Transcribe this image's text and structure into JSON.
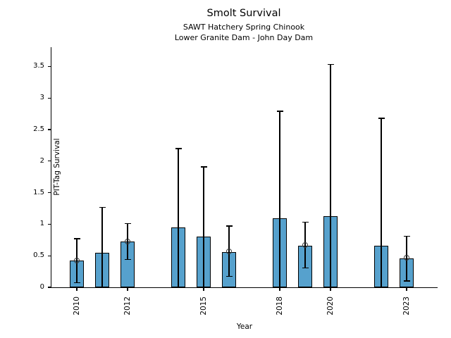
{
  "header": {
    "title": "Smolt Survival",
    "subtitle1": "SAWT Hatchery Spring Chinook",
    "subtitle2": "Lower Granite Dam - John Day Dam"
  },
  "chart_data": {
    "type": "bar",
    "title": "Smolt Survival",
    "subtitle": [
      "SAWT Hatchery Spring Chinook",
      "Lower Granite Dam - John Day Dam"
    ],
    "xlabel": "Year",
    "ylabel": "PIT-Tag Survival",
    "ylim": [
      0,
      3.8
    ],
    "xlim": [
      2009,
      2024.2
    ],
    "grid": false,
    "legend": "none",
    "bar_color": "#56a1cd",
    "bar_edge_color": "#000000",
    "error_bar_color": "#000000",
    "marker_color": "#3a3a3a",
    "yticks": [
      0,
      0.5,
      1,
      1.5,
      2,
      2.5,
      3,
      3.5
    ],
    "ytick_labels": [
      "0",
      "0.5",
      "1",
      "1.5",
      "2",
      "2.5",
      "3",
      "3.5"
    ],
    "xtick_years": [
      2010,
      2012,
      2015,
      2018,
      2020,
      2023
    ],
    "xtick_labels": [
      "2010",
      "2012",
      "2015",
      "2018",
      "2020",
      "2023"
    ],
    "categories": [
      2010,
      2011,
      2012,
      2014,
      2015,
      2016,
      2018,
      2019,
      2020,
      2022,
      2023
    ],
    "values": [
      0.42,
      0.55,
      0.72,
      0.95,
      0.8,
      0.56,
      1.09,
      0.66,
      1.13,
      0.66,
      0.46
    ],
    "ci_lower": [
      0.07,
      0,
      0.44,
      0,
      0,
      0.17,
      0,
      0.31,
      0,
      0,
      0.1
    ],
    "ci_upper": [
      0.77,
      1.27,
      1.01,
      2.2,
      1.91,
      0.97,
      2.79,
      1.03,
      3.53,
      2.68,
      0.81
    ],
    "point_marker": [
      true,
      false,
      true,
      false,
      false,
      true,
      false,
      true,
      false,
      false,
      true
    ]
  }
}
